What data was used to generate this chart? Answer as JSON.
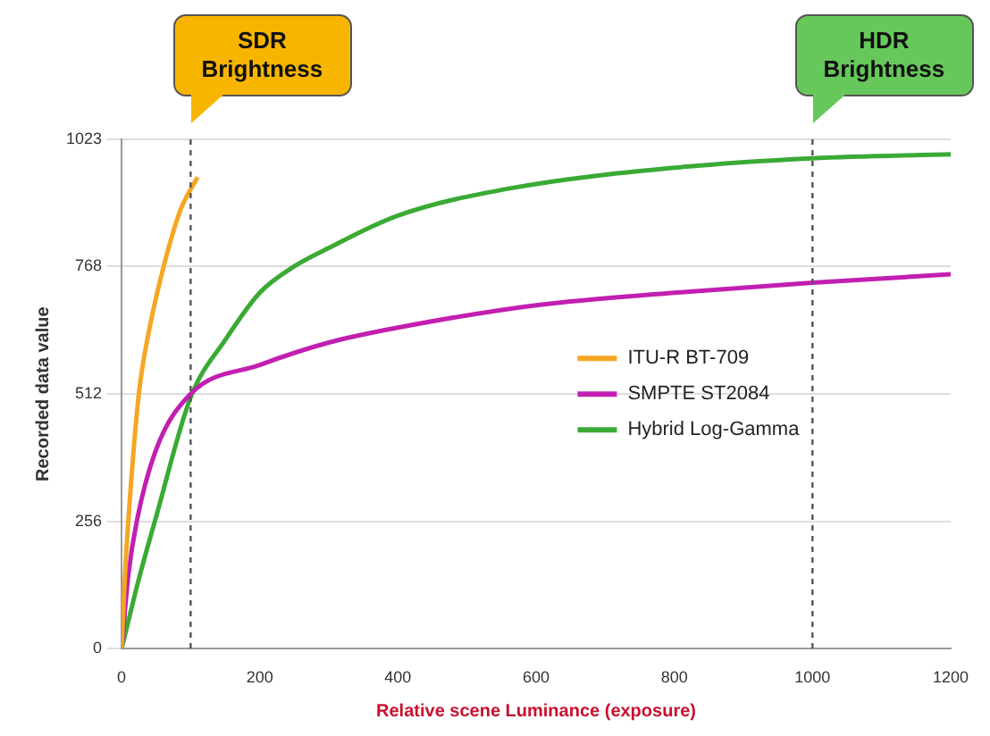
{
  "chart_data": {
    "type": "line",
    "xlabel": "Relative scene Luminance (exposure)",
    "ylabel": "Recorded data value",
    "xlim": [
      0,
      1200
    ],
    "xticks": [
      0,
      200,
      400,
      600,
      800,
      1000,
      1200
    ],
    "ylim": [
      0,
      1023
    ],
    "yticks": [
      0,
      256,
      512,
      768,
      1023
    ],
    "grid": "y",
    "legend": "right",
    "marker": "none",
    "line_style": "solid",
    "series": [
      {
        "name": "ITU-R BT-709",
        "color": "#f5a623",
        "x": [
          0,
          5,
          12,
          25,
          40,
          61,
          85,
          110
        ],
        "values": [
          0,
          150,
          300,
          512,
          640,
          768,
          880,
          947
        ]
      },
      {
        "name": "SMPTE ST2084",
        "color": "#c21fb0",
        "x": [
          0,
          10,
          22,
          50,
          100,
          200,
          300,
          400,
          600,
          800,
          1000,
          1200
        ],
        "values": [
          0,
          150,
          256,
          400,
          512,
          570,
          615,
          645,
          690,
          715,
          735,
          752
        ]
      },
      {
        "name": "Hybrid Log-Gamma",
        "color": "#3aaa35",
        "x": [
          0,
          25,
          50,
          100,
          150,
          200,
          250,
          300,
          400,
          564,
          800,
          1000,
          1200
        ],
        "values": [
          0,
          140,
          265,
          505,
          620,
          715,
          768,
          805,
          870,
          925,
          966,
          985,
          993
        ]
      }
    ],
    "ref_lines": [
      {
        "axis": "x",
        "value": 100,
        "label": "SDR Brightness",
        "color": "#555555",
        "line_style": "dashed"
      },
      {
        "axis": "x",
        "value": 1000,
        "label": "HDR Brightness",
        "color": "#555555",
        "line_style": "dashed"
      }
    ]
  }
}
